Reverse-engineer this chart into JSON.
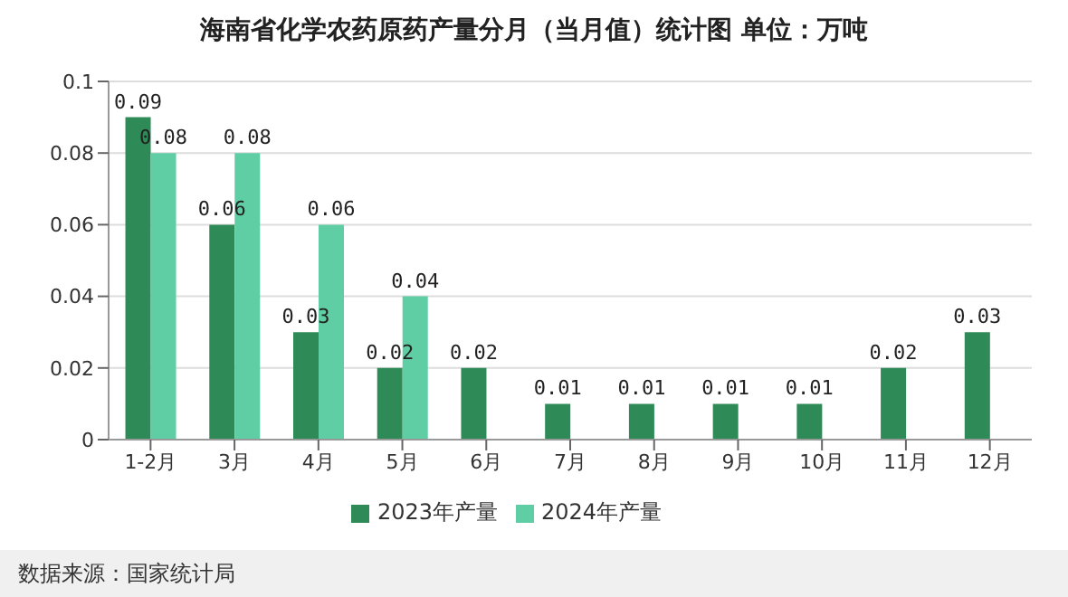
{
  "chart_data": {
    "type": "bar",
    "title": "海南省化学农药原药产量分月（当月值）统计图 单位：万吨",
    "categories": [
      "1-2月",
      "3月",
      "4月",
      "5月",
      "6月",
      "7月",
      "8月",
      "9月",
      "10月",
      "11月",
      "12月"
    ],
    "series": [
      {
        "name": "2023年产量",
        "color": "#2e8b57",
        "values": [
          0.09,
          0.06,
          0.03,
          0.02,
          0.02,
          0.01,
          0.01,
          0.01,
          0.01,
          0.02,
          0.03
        ]
      },
      {
        "name": "2024年产量",
        "color": "#5fcea5",
        "values": [
          0.08,
          0.08,
          0.06,
          0.04,
          null,
          null,
          null,
          null,
          null,
          null,
          null
        ]
      }
    ],
    "ylim": [
      0,
      0.1
    ],
    "yticks": [
      0,
      0.02,
      0.04,
      0.06,
      0.08,
      0.1
    ],
    "grid": "y",
    "legend": "bottom",
    "data_labels": true,
    "annotations": [
      "数据来源：国家统计局"
    ]
  }
}
